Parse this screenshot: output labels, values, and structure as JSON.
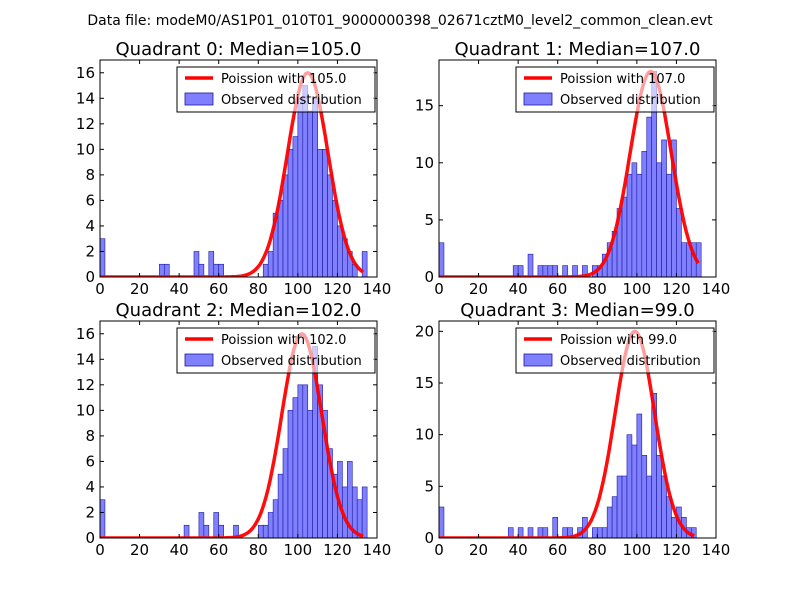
{
  "suptitle": "Data file: modeM0/AS1P01_010T01_9000000398_02671cztM0_level2_common_clean.evt",
  "legend_labels": {
    "poisson_prefix": "Poission with ",
    "observed": "Observed distribution"
  },
  "colors": {
    "curve": "#ff0000",
    "bars": "#8080ff",
    "bar_edge": "#1a1aa0",
    "axes": "#000000"
  },
  "chart_data": [
    {
      "type": "bar",
      "title": "Quadrant 0: Median=105.0",
      "median": 105.0,
      "poisson_label": "105.0",
      "legend_position": "top-right",
      "xlim": [
        0,
        140
      ],
      "ylim": [
        0,
        17
      ],
      "xticks": [
        0,
        20,
        40,
        60,
        80,
        100,
        120,
        140
      ],
      "yticks": [
        0,
        2,
        4,
        6,
        8,
        10,
        12,
        14,
        16
      ],
      "bin_width": 2.5,
      "bins": [
        [
          0,
          3
        ],
        [
          30,
          1
        ],
        [
          32.5,
          1
        ],
        [
          47.5,
          2
        ],
        [
          50,
          1
        ],
        [
          55,
          2
        ],
        [
          57.5,
          1
        ],
        [
          60,
          1
        ],
        [
          82.5,
          1
        ],
        [
          85,
          2
        ],
        [
          87.5,
          5
        ],
        [
          90,
          6
        ],
        [
          92.5,
          8
        ],
        [
          95,
          10
        ],
        [
          97.5,
          11
        ],
        [
          100,
          14
        ],
        [
          102.5,
          15
        ],
        [
          105,
          13
        ],
        [
          107.5,
          14
        ],
        [
          110,
          10
        ],
        [
          112.5,
          10
        ],
        [
          115,
          8
        ],
        [
          117.5,
          6
        ],
        [
          120,
          4
        ],
        [
          122.5,
          3
        ],
        [
          125,
          2
        ],
        [
          127.5,
          1
        ],
        [
          132.5,
          2
        ]
      ],
      "curve_amplitude": 16.0,
      "curve_xmax": 133
    },
    {
      "type": "bar",
      "title": "Quadrant 1: Median=107.0",
      "median": 107.0,
      "poisson_label": "107.0",
      "legend_position": "top-right",
      "xlim": [
        0,
        140
      ],
      "ylim": [
        0,
        19
      ],
      "xticks": [
        0,
        20,
        40,
        60,
        80,
        100,
        120,
        140
      ],
      "yticks": [
        0,
        5,
        10,
        15
      ],
      "bin_width": 2.5,
      "bins": [
        [
          0,
          3
        ],
        [
          37.5,
          1
        ],
        [
          40,
          1
        ],
        [
          45,
          2
        ],
        [
          50,
          1
        ],
        [
          52.5,
          1
        ],
        [
          55,
          1
        ],
        [
          57.5,
          1
        ],
        [
          62.5,
          1
        ],
        [
          67.5,
          1
        ],
        [
          72.5,
          1
        ],
        [
          77.5,
          1
        ],
        [
          80,
          1
        ],
        [
          82.5,
          2
        ],
        [
          85,
          3
        ],
        [
          87.5,
          4
        ],
        [
          90,
          6
        ],
        [
          92.5,
          7
        ],
        [
          95,
          9
        ],
        [
          97.5,
          10
        ],
        [
          100,
          9
        ],
        [
          102.5,
          11
        ],
        [
          105,
          14
        ],
        [
          107.5,
          18
        ],
        [
          110,
          10
        ],
        [
          112.5,
          12
        ],
        [
          115,
          9
        ],
        [
          117.5,
          12
        ],
        [
          120,
          6
        ],
        [
          122.5,
          3
        ],
        [
          125,
          3
        ],
        [
          127.5,
          3
        ],
        [
          130,
          3
        ]
      ],
      "curve_amplitude": 18.0,
      "curve_xmax": 131
    },
    {
      "type": "bar",
      "title": "Quadrant 2: Median=102.0",
      "median": 102.0,
      "poisson_label": "102.0",
      "legend_position": "top-right",
      "xlim": [
        0,
        140
      ],
      "ylim": [
        0,
        17
      ],
      "xticks": [
        0,
        20,
        40,
        60,
        80,
        100,
        120,
        140
      ],
      "yticks": [
        0,
        2,
        4,
        6,
        8,
        10,
        12,
        14,
        16
      ],
      "bin_width": 2.5,
      "bins": [
        [
          0,
          3
        ],
        [
          42.5,
          1
        ],
        [
          50,
          2
        ],
        [
          52.5,
          1
        ],
        [
          57.5,
          2
        ],
        [
          60,
          1
        ],
        [
          67.5,
          1
        ],
        [
          80,
          1
        ],
        [
          82.5,
          1
        ],
        [
          85,
          2
        ],
        [
          87.5,
          3
        ],
        [
          90,
          5
        ],
        [
          92.5,
          7
        ],
        [
          95,
          10
        ],
        [
          97.5,
          11
        ],
        [
          100,
          12
        ],
        [
          102.5,
          12
        ],
        [
          105,
          10
        ],
        [
          107.5,
          15
        ],
        [
          110,
          12
        ],
        [
          112.5,
          10
        ],
        [
          115,
          7
        ],
        [
          117.5,
          5
        ],
        [
          120,
          6
        ],
        [
          122.5,
          4
        ],
        [
          125,
          6
        ],
        [
          127.5,
          4
        ],
        [
          130,
          3
        ],
        [
          132.5,
          4
        ]
      ],
      "curve_amplitude": 16.0,
      "curve_xmax": 133
    },
    {
      "type": "bar",
      "title": "Quadrant 3: Median=99.0",
      "median": 99.0,
      "poisson_label": "99.0",
      "legend_position": "top-right",
      "xlim": [
        0,
        140
      ],
      "ylim": [
        0,
        21
      ],
      "xticks": [
        0,
        20,
        40,
        60,
        80,
        100,
        120,
        140
      ],
      "yticks": [
        0,
        5,
        10,
        15,
        20
      ],
      "bin_width": 2.5,
      "bins": [
        [
          0,
          3
        ],
        [
          35,
          1
        ],
        [
          40,
          1
        ],
        [
          45,
          1
        ],
        [
          50,
          1
        ],
        [
          52.5,
          1
        ],
        [
          57.5,
          2
        ],
        [
          62.5,
          1
        ],
        [
          65,
          1
        ],
        [
          70,
          1
        ],
        [
          72.5,
          2
        ],
        [
          77.5,
          1
        ],
        [
          80,
          1
        ],
        [
          82.5,
          1
        ],
        [
          85,
          3
        ],
        [
          87.5,
          4
        ],
        [
          90,
          6
        ],
        [
          92.5,
          6
        ],
        [
          95,
          10
        ],
        [
          97.5,
          9
        ],
        [
          100,
          12
        ],
        [
          102.5,
          8
        ],
        [
          105,
          6
        ],
        [
          107.5,
          14
        ],
        [
          110,
          8
        ],
        [
          112.5,
          6
        ],
        [
          115,
          4
        ],
        [
          117.5,
          2
        ],
        [
          120,
          3
        ],
        [
          122.5,
          2
        ],
        [
          125,
          1
        ],
        [
          127.5,
          1
        ]
      ],
      "curve_amplitude": 20.0,
      "curve_xmax": 129
    }
  ]
}
